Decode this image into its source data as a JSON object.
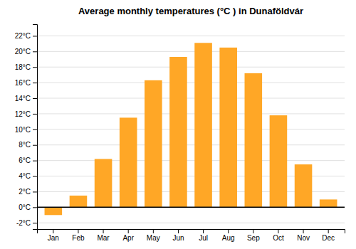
{
  "chart_data": {
    "type": "bar",
    "title": "Average monthly temperatures (°C ) in Dunaföldvár",
    "categories": [
      "Jan",
      "Feb",
      "Mar",
      "Apr",
      "May",
      "Jun",
      "Jul",
      "Aug",
      "Sep",
      "Oct",
      "Nov",
      "Dec"
    ],
    "values": [
      -1.0,
      1.5,
      6.2,
      11.5,
      16.3,
      19.3,
      21.1,
      20.5,
      17.2,
      11.8,
      5.5,
      1.0
    ],
    "color": "#FFA726",
    "ylim": [
      -2.8,
      23.5
    ],
    "yticks": [
      {
        "value": -2,
        "label": "-2°C"
      },
      {
        "value": 0,
        "label": "0°C"
      },
      {
        "value": 2,
        "label": "2°C"
      },
      {
        "value": 4,
        "label": "4°C"
      },
      {
        "value": 6,
        "label": "6°C"
      },
      {
        "value": 8,
        "label": "8°C"
      },
      {
        "value": 10,
        "label": "10°C"
      },
      {
        "value": 12,
        "label": "12°C"
      },
      {
        "value": 14,
        "label": "14°C"
      },
      {
        "value": 16,
        "label": "16°C"
      },
      {
        "value": 18,
        "label": "18°C"
      },
      {
        "value": 20,
        "label": "20°C"
      },
      {
        "value": 22,
        "label": "22°C"
      }
    ],
    "grid": true
  }
}
